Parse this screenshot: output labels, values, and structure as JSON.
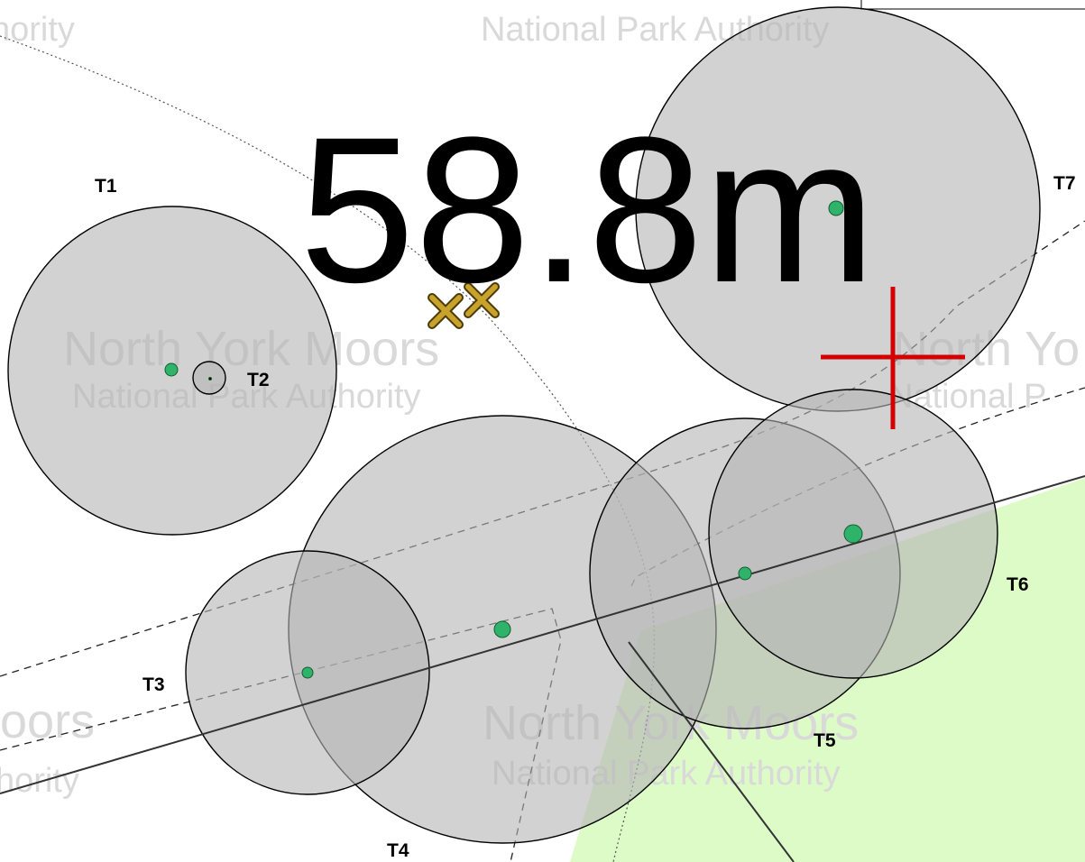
{
  "watermarks": {
    "park_name": "North York Moors",
    "authority": "National Park Authority",
    "fragment_top_left": "hority",
    "fragment_top_center": "National Park Authority",
    "fragment_mid_right_1": "North Yo",
    "fragment_mid_right_2": "National P",
    "fragment_bottom_left_1": "oors",
    "fragment_bottom_left_2": "hority"
  },
  "measurement": {
    "label": "58.8m"
  },
  "trees": [
    {
      "id": "T1",
      "label": "T1"
    },
    {
      "id": "T2",
      "label": "T2"
    },
    {
      "id": "T3",
      "label": "T3"
    },
    {
      "id": "T4",
      "label": "T4"
    },
    {
      "id": "T5",
      "label": "T5"
    },
    {
      "id": "T6",
      "label": "T6"
    },
    {
      "id": "T7",
      "label": "T7"
    }
  ],
  "colors": {
    "canopy_fill": "#b4b4b4",
    "trunk_marker": "#2fb36a",
    "field_green": "#dcfbc6",
    "target_cross": "#d40000",
    "survey_cross": "#8a6a10"
  },
  "icons": {
    "survey_points": "cross-marker-icon",
    "target": "red-crosshair-icon"
  }
}
